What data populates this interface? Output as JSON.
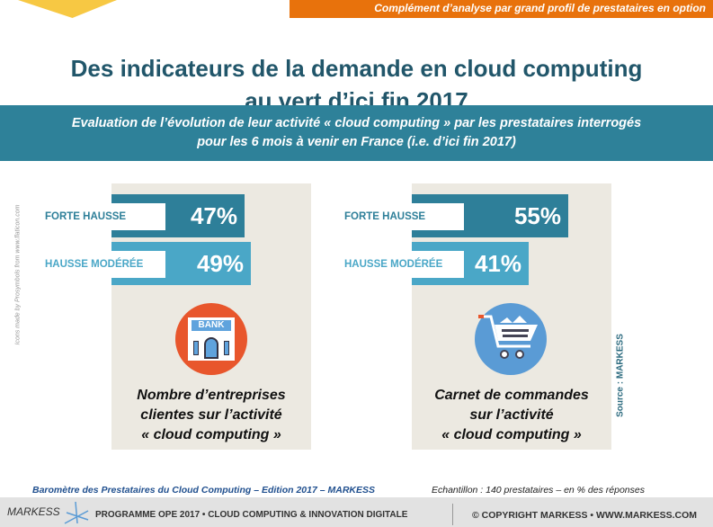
{
  "banner": "Complément d’analyse par grand profil de prestataires en option",
  "title": [
    "Des indicateurs de la demande en cloud computing",
    "au vert d’ici fin 2017"
  ],
  "subtitle": [
    "Evaluation de l’évolution de leur activité « cloud computing » par les prestataires interrogés",
    "pour les 6 mois à venir en France (i.e. d’ici fin 2017)"
  ],
  "panels": [
    {
      "bars": [
        {
          "label": "FORTE HAUSSE",
          "value": "47%"
        },
        {
          "label": "HAUSSE MODÉRÉE",
          "value": "49%"
        }
      ],
      "icon_text": "BANK",
      "caption": [
        "Nombre d’entreprises",
        "clientes sur l’activité",
        "« cloud computing »"
      ]
    },
    {
      "bars": [
        {
          "label": "FORTE HAUSSE",
          "value": "55%"
        },
        {
          "label": "HAUSSE MODÉRÉE",
          "value": "41%"
        }
      ],
      "caption": [
        "Carnet de commandes",
        "sur l’activité",
        "« cloud computing »"
      ]
    }
  ],
  "credit": "Icons made by Prosymbols from www.flaticon.com",
  "source": "Source : MARKESS",
  "footer": {
    "barometer": "Baromètre des Prestataires du Cloud Computing – Edition 2017 – MARKESS",
    "sample": "Echantillon : 140 prestataires – en % des réponses",
    "logo": "MARKESS",
    "program": "PROGRAMME OPE 2017 • CLOUD COMPUTING & INNOVATION DIGITALE",
    "copyright": "© COPYRIGHT MARKESS • WWW.MARKESS.COM"
  },
  "colors": {
    "dark_bar": "#2e7f99",
    "light_bar": "#4aa7c7",
    "banner": "#e8720c"
  }
}
